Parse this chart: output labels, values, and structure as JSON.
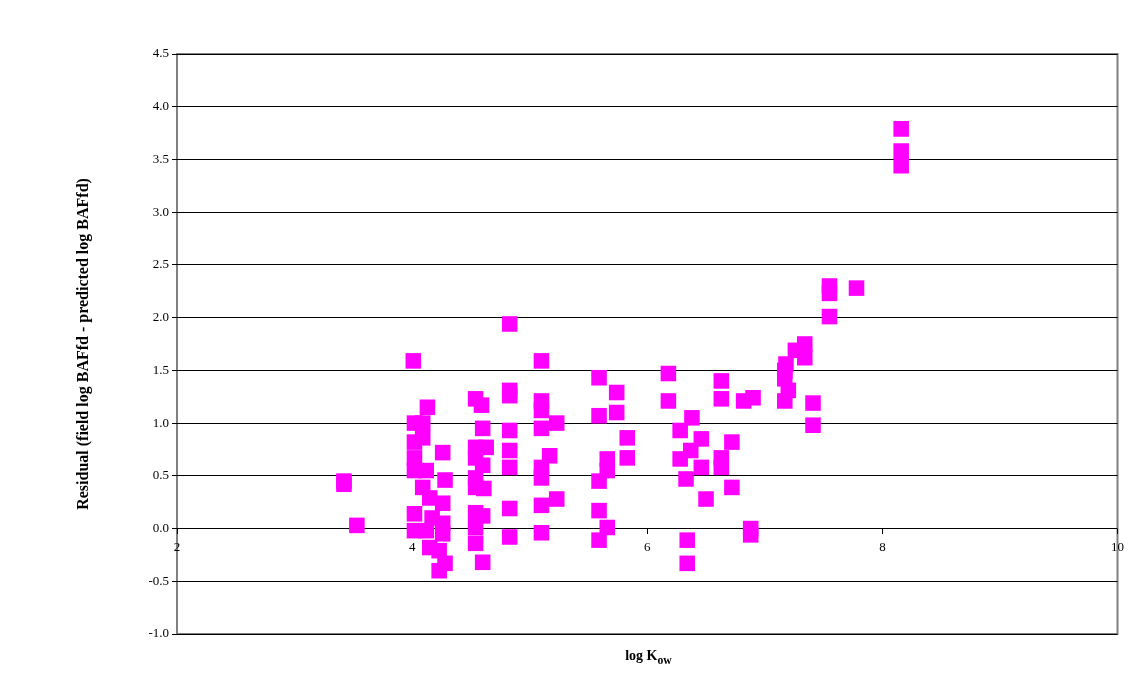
{
  "chart_data": {
    "type": "scatter",
    "xlabel": "log K$_{ow}$",
    "ylabel": "Residual (field log BAFfd - predicted log BAFfd)",
    "marker": "square",
    "grid": "y",
    "xlim": [
      2,
      10
    ],
    "xticks": [
      2,
      4,
      6,
      8,
      10
    ],
    "ylim": [
      -1,
      4.5
    ],
    "yticks": [
      {
        "value": -1,
        "label": "-1.0"
      },
      -0.5,
      {
        "value": 0,
        "label": "0.0"
      },
      0.5,
      {
        "value": 1,
        "label": "1.0"
      },
      1.5,
      {
        "value": 2,
        "label": "2.0"
      },
      2.5,
      {
        "value": 3,
        "label": "3.0"
      },
      3.5,
      {
        "value": 4,
        "label": "4.0"
      },
      4.5
    ],
    "series": [
      {
        "color": "#ff00ff",
        "x": [
          3.42,
          3.42,
          3.53,
          4.01,
          4.13,
          4.02,
          4.09,
          4.02,
          4.09,
          4.02,
          4.02,
          4.12,
          4.09,
          4.15,
          4.26,
          4.28,
          4.02,
          4.02,
          4.12,
          4.15,
          4.23,
          4.23,
          4.28,
          4.26,
          4.26,
          4.26,
          4.17,
          4.54,
          4.59,
          4.6,
          4.54,
          4.63,
          4.54,
          4.6,
          4.54,
          4.61,
          4.54,
          4.54,
          4.6,
          4.54,
          4.54,
          4.6,
          4.83,
          4.83,
          4.83,
          4.83,
          4.83,
          4.83,
          4.83,
          4.83,
          5.1,
          5.1,
          5.1,
          5.1,
          5.23,
          5.17,
          5.1,
          5.1,
          5.23,
          5.1,
          5.1,
          5.59,
          5.59,
          5.74,
          5.74,
          5.83,
          5.83,
          5.66,
          5.66,
          5.59,
          5.59,
          5.66,
          5.59,
          6.18,
          6.18,
          6.28,
          6.38,
          6.46,
          6.28,
          6.37,
          6.46,
          6.33,
          6.5,
          6.34,
          6.34,
          6.63,
          6.63,
          6.63,
          6.63,
          6.72,
          6.72,
          6.82,
          6.9,
          6.88,
          6.88,
          7.17,
          7.17,
          7.2,
          7.26,
          7.34,
          7.34,
          7.41,
          7.41,
          7.18,
          7.17,
          7.55,
          7.55,
          7.55,
          7.78,
          8.16,
          8.16,
          8.16
        ],
        "values": [
          0.45,
          0.42,
          0.03,
          1.59,
          1.15,
          1.0,
          1.0,
          0.82,
          0.86,
          0.67,
          0.55,
          0.55,
          0.39,
          0.29,
          0.72,
          0.46,
          0.14,
          -0.02,
          -0.02,
          -0.18,
          -0.21,
          -0.4,
          -0.33,
          0.24,
          0.05,
          -0.05,
          0.1,
          1.23,
          1.17,
          0.95,
          0.77,
          0.77,
          0.67,
          0.6,
          0.48,
          0.38,
          0.39,
          0.15,
          0.12,
          0.01,
          -0.14,
          -0.32,
          1.94,
          1.31,
          1.26,
          0.93,
          0.74,
          0.58,
          0.19,
          -0.08,
          1.59,
          1.21,
          1.12,
          0.95,
          1.0,
          0.69,
          0.58,
          0.48,
          0.28,
          0.22,
          -0.04,
          1.43,
          1.07,
          1.29,
          1.1,
          0.86,
          0.67,
          0.66,
          0.55,
          0.45,
          0.17,
          0.01,
          -0.11,
          1.47,
          1.21,
          0.93,
          1.05,
          0.85,
          0.66,
          0.74,
          0.58,
          0.47,
          0.28,
          -0.11,
          -0.33,
          1.4,
          1.23,
          0.67,
          0.58,
          0.82,
          0.39,
          1.21,
          1.24,
          0.0,
          -0.06,
          1.5,
          1.21,
          1.31,
          1.69,
          1.75,
          1.62,
          1.19,
          0.98,
          1.56,
          1.42,
          2.3,
          2.23,
          2.01,
          2.28,
          3.79,
          3.58,
          3.44
        ]
      }
    ]
  }
}
